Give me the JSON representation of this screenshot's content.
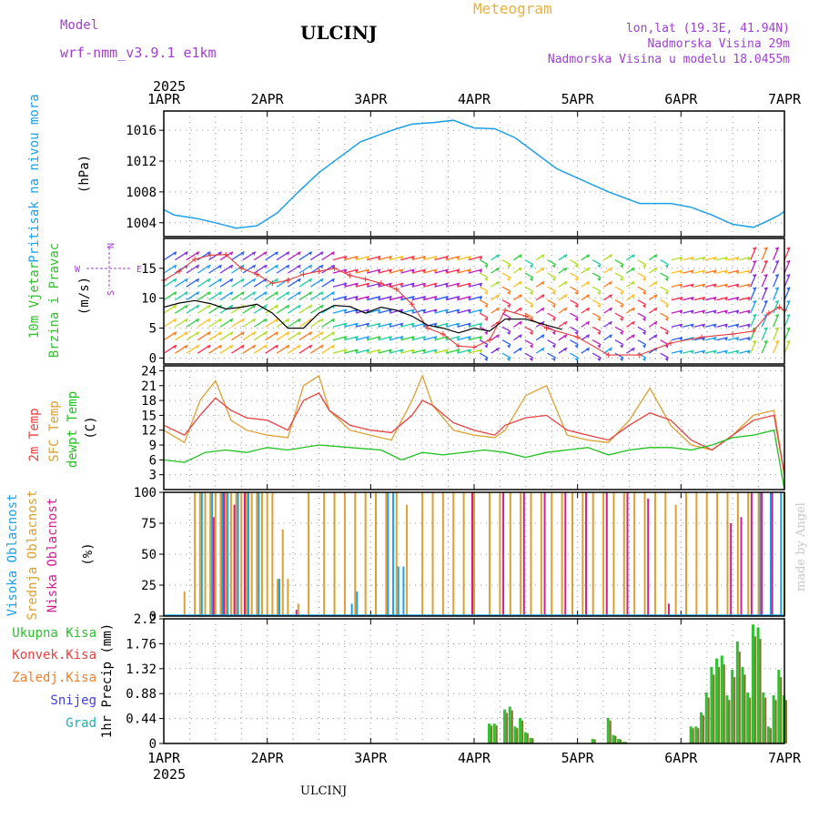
{
  "header": {
    "model_label": "Model",
    "model_name": "wrf-nmm_v3.9.1  e1km",
    "title": "ULCINJ",
    "meteogram": "Meteogram",
    "lonlat": "lon,lat (19.3E, 41.94N)",
    "altitude": "Nadmorska Visina 29m",
    "model_altitude": "Nadmorska Visina u modelu 18.0455m",
    "footer_station": "ULCINJ",
    "watermark": "made by Angel"
  },
  "colors": {
    "pressure": "#1ea0e6",
    "speed": "#000000",
    "gust": "#e43c3c",
    "t2m": "#e84040",
    "sfc": "#dca032",
    "dew": "#20c020",
    "cloud_high": "#1ea0e6",
    "cloud_mid": "#dca032",
    "cloud_low": "#d02090",
    "precip_total": "#30c030",
    "precip_conv": "#e84040",
    "snow": "#4040e0",
    "graupel": "#20b0b0",
    "frozen": "#f08030",
    "header_purple": "#a040d0",
    "header_orange": "#e8b040"
  },
  "chart_data": [
    {
      "type": "line",
      "panel": "pressure",
      "ylabel": "Pritisak na nivou mora",
      "unit": "(hPa)",
      "x_unit": "day",
      "ylim": [
        1002.2,
        1018.5
      ],
      "yticks": [
        1004,
        1008,
        1012,
        1016
      ],
      "series": [
        {
          "x": [
            0,
            0.1,
            0.3,
            0.5,
            0.7,
            0.9,
            1.1,
            1.3,
            1.5,
            1.7,
            1.9,
            2.1,
            2.25,
            2.4,
            2.6,
            2.8,
            3.0,
            3.2,
            3.4,
            3.6,
            3.8,
            4.0,
            4.3,
            4.6,
            4.9,
            5.1,
            5.3,
            5.5,
            5.7,
            5.85,
            5.95,
            6.0
          ],
          "y": [
            1005.7,
            1005.0,
            1004.6,
            1004.0,
            1003.3,
            1003.6,
            1005.3,
            1008.0,
            1010.5,
            1012.5,
            1014.5,
            1015.5,
            1016.2,
            1016.8,
            1017.0,
            1017.3,
            1016.3,
            1016.2,
            1015.0,
            1013.0,
            1011.0,
            1009.8,
            1008.0,
            1006.5,
            1006.5,
            1006.0,
            1005.0,
            1003.8,
            1003.4,
            1004.3,
            1005.0,
            1005.5
          ]
        }
      ]
    },
    {
      "type": "line",
      "panel": "wind",
      "ylabel": "10m Vjetar Brzina i Pravac",
      "unit": "(m/s)",
      "compass": {
        "w": "W",
        "e": "E",
        "n": "N",
        "s": "S"
      },
      "ylim": [
        -1,
        20
      ],
      "yticks": [
        0,
        5,
        10,
        15
      ],
      "series": [
        {
          "name": "speed",
          "x": [
            0,
            0.15,
            0.3,
            0.45,
            0.6,
            0.75,
            0.9,
            1.05,
            1.2,
            1.35,
            1.5,
            1.65,
            1.8,
            1.95,
            2.1,
            2.25,
            2.4,
            2.55,
            2.7,
            2.85,
            3.0,
            3.15,
            3.3,
            3.5,
            3.7,
            3.85
          ],
          "y": [
            8.5,
            9.2,
            9.6,
            9.1,
            8.2,
            8.5,
            9.0,
            7.5,
            5.0,
            5.0,
            7.5,
            8.8,
            8.6,
            7.5,
            8.5,
            8.0,
            7.0,
            5.5,
            5.0,
            4.2,
            5.0,
            4.5,
            6.5,
            6.5,
            5.5,
            4.8
          ]
        },
        {
          "name": "gust",
          "x": [
            0,
            0.15,
            0.3,
            0.45,
            0.6,
            0.75,
            0.9,
            1.05,
            1.2,
            1.35,
            1.5,
            1.65,
            1.8,
            1.95,
            2.1,
            2.25,
            2.4,
            2.55,
            2.7,
            2.85,
            3.0,
            3.15,
            3.3,
            3.5,
            3.7,
            4.0,
            4.3,
            4.6,
            4.9,
            5.2,
            5.5,
            5.7,
            5.85,
            5.95,
            6.0
          ],
          "y": [
            13,
            14.5,
            16.5,
            17.2,
            17.3,
            15.0,
            14.0,
            12.5,
            13.0,
            14.0,
            14.5,
            15.0,
            13.8,
            13.2,
            12.5,
            11.5,
            9.0,
            5.0,
            4.0,
            2.0,
            1.8,
            3.0,
            8.0,
            7.0,
            5.0,
            3.5,
            0.5,
            0.5,
            2.5,
            3.5,
            4.0,
            4.5,
            7.5,
            8.5,
            8.0
          ]
        }
      ]
    },
    {
      "type": "line",
      "panel": "temperature",
      "ylabel": "2m Temp / SFC Temp / dewpt Temp",
      "unit": "(C)",
      "ylim": [
        0,
        25
      ],
      "yticks": [
        3,
        6,
        9,
        12,
        15,
        18,
        21,
        24
      ],
      "series": [
        {
          "name": "2m Temp",
          "x": [
            0,
            0.2,
            0.35,
            0.5,
            0.65,
            0.8,
            1.0,
            1.2,
            1.35,
            1.5,
            1.6,
            1.8,
            2.0,
            2.2,
            2.4,
            2.5,
            2.6,
            2.8,
            3.0,
            3.2,
            3.3,
            3.5,
            3.7,
            3.9,
            4.1,
            4.3,
            4.5,
            4.7,
            4.9,
            5.1,
            5.3,
            5.5,
            5.7,
            5.9,
            6.0
          ],
          "y": [
            13,
            11,
            15,
            18.5,
            16,
            14.5,
            14,
            12,
            18,
            19.5,
            16,
            13,
            12,
            11.5,
            15,
            18,
            17,
            13.5,
            12,
            11,
            13,
            14.5,
            15,
            12,
            11,
            10,
            13,
            15.5,
            14,
            10,
            8,
            11,
            14,
            15,
            3
          ]
        },
        {
          "name": "SFC Temp",
          "x": [
            0,
            0.2,
            0.35,
            0.5,
            0.65,
            0.8,
            1.0,
            1.2,
            1.35,
            1.5,
            1.6,
            1.8,
            2.0,
            2.2,
            2.4,
            2.5,
            2.6,
            2.8,
            3.0,
            3.2,
            3.3,
            3.5,
            3.7,
            3.9,
            4.1,
            4.3,
            4.5,
            4.7,
            4.9,
            5.1,
            5.3,
            5.5,
            5.7,
            5.9,
            6.0
          ],
          "y": [
            12,
            9.5,
            18,
            22,
            14,
            12,
            11,
            10.5,
            21,
            23,
            16,
            12,
            11,
            10,
            18,
            23,
            17,
            12,
            11,
            10.5,
            12,
            19,
            21,
            11,
            10,
            9.5,
            14,
            20.5,
            13,
            9,
            8,
            11,
            15,
            16,
            3
          ]
        },
        {
          "name": "dewpt Temp",
          "x": [
            0,
            0.2,
            0.4,
            0.6,
            0.8,
            1.0,
            1.2,
            1.5,
            1.8,
            2.1,
            2.3,
            2.5,
            2.7,
            2.9,
            3.1,
            3.3,
            3.5,
            3.7,
            3.9,
            4.1,
            4.3,
            4.5,
            4.7,
            4.9,
            5.1,
            5.3,
            5.5,
            5.7,
            5.9,
            6.0
          ],
          "y": [
            6,
            5.5,
            7.5,
            8,
            7.5,
            8.5,
            8,
            9,
            8.5,
            8,
            6,
            7.5,
            7,
            7.5,
            8,
            7.5,
            6.5,
            7.5,
            8,
            8.5,
            7,
            8,
            8.5,
            8.5,
            8,
            9,
            10.5,
            11,
            12,
            0
          ]
        }
      ]
    },
    {
      "type": "bar",
      "panel": "cloud",
      "ylabel": "Visoka Oblacnost / Srednja Oblacnost / Niska Oblacnost",
      "unit": "(%)",
      "ylim": [
        0,
        100
      ],
      "yticks": [
        0,
        25,
        50,
        75,
        100
      ],
      "series": [
        {
          "name": "Srednja Oblacnost",
          "x": [
            0.2,
            0.3,
            0.35,
            0.4,
            0.45,
            0.5,
            0.55,
            0.6,
            0.65,
            0.7,
            0.75,
            0.8,
            0.85,
            0.9,
            0.95,
            1.0,
            1.05,
            1.1,
            1.15,
            1.2,
            1.3,
            1.4,
            1.55,
            1.65,
            1.75,
            1.85,
            1.95,
            2.05,
            2.15,
            2.25,
            2.35,
            2.5,
            2.6,
            2.7,
            2.8,
            2.9,
            3.0,
            3.15,
            3.25,
            3.35,
            3.45,
            3.55,
            3.65,
            3.75,
            3.85,
            3.95,
            4.05,
            4.15,
            4.25,
            4.35,
            4.45,
            4.55,
            4.65,
            4.75,
            4.85,
            4.95,
            5.05,
            5.15,
            5.25,
            5.35,
            5.45,
            5.55,
            5.65,
            5.75,
            6.0
          ],
          "y": [
            20,
            100,
            100,
            100,
            100,
            100,
            100,
            100,
            100,
            100,
            100,
            100,
            100,
            100,
            100,
            100,
            100,
            30,
            70,
            30,
            10,
            100,
            100,
            100,
            100,
            100,
            100,
            100,
            100,
            100,
            90,
            100,
            100,
            100,
            100,
            100,
            100,
            100,
            100,
            100,
            100,
            100,
            100,
            100,
            100,
            100,
            100,
            100,
            100,
            100,
            100,
            100,
            100,
            100,
            100,
            90,
            100,
            100,
            100,
            100,
            100,
            100,
            100,
            100,
            100
          ]
        },
        {
          "name": "Visoka Oblacnost",
          "x": [
            0.35,
            0.45,
            0.55,
            0.6,
            0.7,
            0.8,
            0.9,
            1.1,
            1.8,
            1.85,
            2.15,
            2.2,
            2.25,
            2.3,
            5.75,
            5.85,
            5.95
          ],
          "y": [
            100,
            100,
            100,
            100,
            100,
            100,
            100,
            30,
            10,
            20,
            100,
            100,
            40,
            40,
            100,
            100,
            100
          ]
        },
        {
          "name": "Niska Oblacnost",
          "x": [
            0.5,
            0.6,
            0.7,
            0.8,
            1.3,
            3.0,
            3.3,
            3.5,
            3.7,
            3.9,
            4.1,
            4.3,
            4.5,
            4.7,
            4.9,
            5.5,
            5.6,
            5.7,
            5.8,
            5.9
          ],
          "y": [
            80,
            100,
            90,
            100,
            5,
            100,
            100,
            100,
            100,
            100,
            100,
            100,
            100,
            95,
            10,
            75,
            80,
            100,
            100,
            100
          ]
        }
      ]
    },
    {
      "type": "bar",
      "panel": "precip",
      "ylabel": "1hr Precip (mm)",
      "legend": [
        "Ukupna Kisa",
        "Konvek.Kisa",
        "Zaledj.Kisa",
        "Snijeg",
        "Grad"
      ],
      "ylim": [
        0,
        2.2
      ],
      "yticks": [
        0,
        0.44,
        0.88,
        1.32,
        1.76,
        2.2
      ],
      "series": [
        {
          "name": "Ukupna Kisa",
          "x": [
            3.15,
            3.2,
            3.3,
            3.35,
            3.4,
            3.45,
            3.5,
            3.55,
            4.15,
            4.3,
            4.35,
            4.4,
            4.45,
            5.1,
            5.15,
            5.2,
            5.25,
            5.3,
            5.35,
            5.4,
            5.45,
            5.5,
            5.55,
            5.6,
            5.65,
            5.7,
            5.75,
            5.8,
            5.85,
            5.9,
            5.95,
            6.0
          ],
          "y": [
            0.35,
            0.35,
            0.6,
            0.65,
            0.3,
            0.45,
            0.2,
            0.1,
            0.08,
            0.45,
            0.15,
            0.08,
            0.03,
            0.3,
            0.3,
            0.55,
            0.9,
            1.35,
            1.5,
            1.55,
            0.85,
            1.3,
            1.8,
            1.35,
            0.9,
            2.1,
            2.05,
            0.9,
            0.3,
            0.85,
            1.3,
            0.85
          ]
        }
      ]
    }
  ],
  "axes": {
    "year": "2025",
    "days": [
      "1APR",
      "2APR",
      "3APR",
      "4APR",
      "5APR",
      "6APR",
      "7APR"
    ]
  }
}
